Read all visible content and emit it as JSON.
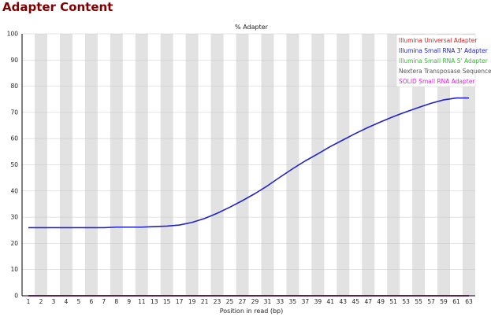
{
  "page_title": "Adapter Content",
  "chart_data": {
    "type": "line",
    "title": "% Adapter",
    "xlabel": "Position in read (bp)",
    "ylabel": "",
    "ylim": [
      0,
      100
    ],
    "yticks": [
      0,
      10,
      20,
      30,
      40,
      50,
      60,
      70,
      80,
      90,
      100
    ],
    "x_tick_labels": [
      "1",
      "2",
      "3",
      "4",
      "5",
      "6",
      "7",
      "8",
      "9",
      "11",
      "13",
      "15",
      "17",
      "19",
      "21",
      "23",
      "25",
      "27",
      "29",
      "31",
      "33",
      "35",
      "37",
      "39",
      "41",
      "43",
      "45",
      "47",
      "49",
      "51",
      "53",
      "55",
      "57",
      "59",
      "61",
      "63"
    ],
    "grid": "alternating vertical bands",
    "legend_position": "top-right",
    "series": [
      {
        "name": "Illumina Universal Adapter",
        "color": "#e41a1c",
        "values": [
          0,
          0,
          0,
          0,
          0,
          0,
          0,
          0,
          0,
          0,
          0,
          0,
          0,
          0,
          0,
          0,
          0,
          0,
          0,
          0,
          0,
          0,
          0,
          0,
          0,
          0,
          0,
          0,
          0,
          0,
          0,
          0,
          0,
          0,
          0,
          0
        ]
      },
      {
        "name": "Illumina Small RNA 3' Adapter",
        "color": "#2222cc",
        "values": [
          26,
          26,
          26,
          26,
          26,
          26,
          26,
          26.2,
          26.2,
          26.2,
          26.4,
          26.6,
          27,
          28,
          29.5,
          31.5,
          33.8,
          36.3,
          39,
          42,
          45.3,
          48.5,
          51.5,
          54.2,
          57,
          59.5,
          62,
          64.3,
          66.4,
          68.4,
          70.2,
          71.9,
          73.5,
          74.8,
          75.5,
          75.5
        ]
      },
      {
        "name": "Illumina Small RNA 5' Adapter",
        "color": "#33bb33",
        "values": [
          0,
          0,
          0,
          0,
          0,
          0,
          0,
          0,
          0,
          0,
          0,
          0,
          0,
          0,
          0,
          0,
          0,
          0,
          0,
          0,
          0,
          0,
          0,
          0,
          0,
          0,
          0,
          0,
          0,
          0,
          0,
          0,
          0,
          0,
          0,
          0
        ]
      },
      {
        "name": "Nextera Transposase Sequence",
        "color": "#555555",
        "values": [
          0,
          0,
          0,
          0,
          0,
          0,
          0,
          0,
          0,
          0,
          0,
          0,
          0,
          0,
          0,
          0,
          0,
          0,
          0,
          0,
          0,
          0,
          0,
          0,
          0,
          0,
          0,
          0,
          0,
          0,
          0,
          0,
          0,
          0,
          0,
          0
        ]
      },
      {
        "name": "SOLID Small RNA Adapter",
        "color": "#dd22dd",
        "values": [
          0,
          0,
          0,
          0,
          0,
          0,
          0,
          0,
          0,
          0,
          0,
          0,
          0,
          0,
          0,
          0,
          0,
          0,
          0,
          0,
          0,
          0,
          0,
          0,
          0,
          0,
          0,
          0,
          0,
          0,
          0,
          0,
          0,
          0,
          0,
          0
        ]
      }
    ]
  }
}
